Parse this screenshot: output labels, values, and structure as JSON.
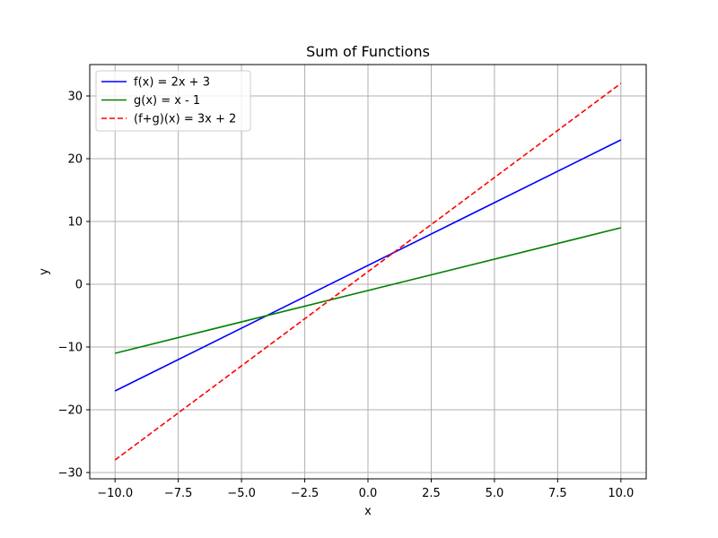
{
  "chart_data": {
    "type": "line",
    "title": "Sum of Functions",
    "xlabel": "x",
    "ylabel": "y",
    "xlim": [
      -11,
      11
    ],
    "ylim": [
      -31,
      35
    ],
    "grid": true,
    "legend_position": "top-left",
    "x_ticks": [
      -10,
      -7.5,
      -5,
      -2.5,
      0,
      2.5,
      5,
      7.5,
      10
    ],
    "x_tick_labels": [
      "−10.0",
      "−7.5",
      "−5.0",
      "−2.5",
      "0.0",
      "2.5",
      "5.0",
      "7.5",
      "10.0"
    ],
    "y_ticks": [
      -30,
      -20,
      -10,
      0,
      10,
      20,
      30
    ],
    "y_tick_labels": [
      "−30",
      "−20",
      "−10",
      "0",
      "10",
      "20",
      "30"
    ],
    "series": [
      {
        "name": "f(x) = 2x + 3",
        "color": "#0000ff",
        "dash": "solid",
        "x": [
          -10,
          10
        ],
        "y": [
          -17,
          23
        ]
      },
      {
        "name": "g(x) = x - 1",
        "color": "#008000",
        "dash": "solid",
        "x": [
          -10,
          10
        ],
        "y": [
          -11,
          9
        ]
      },
      {
        "name": "(f+g)(x) = 3x + 2",
        "color": "#ff0000",
        "dash": "dashed",
        "x": [
          -10,
          10
        ],
        "y": [
          -28,
          32
        ]
      }
    ]
  }
}
